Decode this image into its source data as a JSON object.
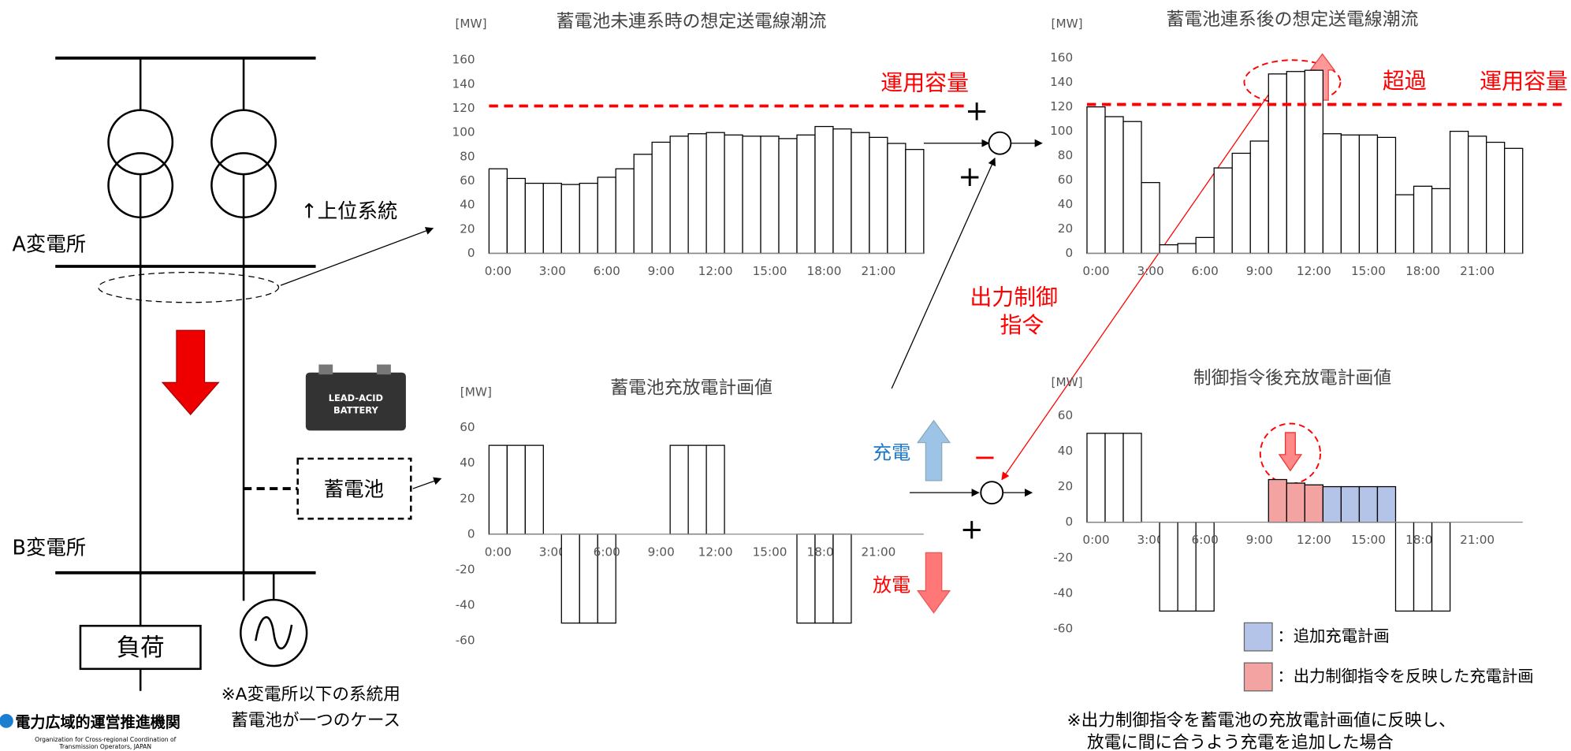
{
  "chart_data": [
    {
      "type": "bar",
      "title": "蓄電池未連系時の想定送電線潮流",
      "ylabel": "[MW]",
      "categories": [
        "0:00",
        null,
        null,
        "3:00",
        null,
        null,
        "6:00",
        null,
        null,
        "9:00",
        null,
        null,
        "12:00",
        null,
        null,
        "15:00",
        null,
        null,
        "18:00",
        null,
        null,
        "21:00",
        null,
        null
      ],
      "values": [
        70,
        62,
        58,
        58,
        57,
        58,
        63,
        70,
        82,
        92,
        97,
        99,
        100,
        98,
        97,
        97,
        95,
        98,
        105,
        103,
        100,
        96,
        91,
        86
      ],
      "color": "#ffffff",
      "ylim": [
        0,
        160
      ],
      "yticks": [
        0,
        20,
        40,
        60,
        80,
        100,
        120,
        140,
        160
      ],
      "ref_line": {
        "value": 122,
        "label": "運用容量",
        "color": "#ff0000"
      }
    },
    {
      "type": "bar",
      "title": "蓄電池連系後の想定送電線潮流",
      "ylabel": "[MW]",
      "categories": [
        "0:00",
        null,
        null,
        "3:00",
        null,
        null,
        "6:00",
        null,
        null,
        "9:00",
        null,
        null,
        "12:00",
        null,
        null,
        "15:00",
        null,
        null,
        "18:00",
        null,
        null,
        "21:00",
        null,
        null
      ],
      "values": [
        120,
        112,
        108,
        58,
        7,
        8,
        13,
        70,
        82,
        92,
        147,
        149,
        150,
        98,
        97,
        97,
        95,
        48,
        55,
        53,
        100,
        96,
        91,
        86
      ],
      "color": "#ffffff",
      "ylim": [
        0,
        160
      ],
      "yticks": [
        0,
        20,
        40,
        60,
        80,
        100,
        120,
        140,
        160
      ],
      "ref_line": {
        "value": 122,
        "label": "運用容量",
        "color": "#ff0000"
      }
    },
    {
      "type": "bar",
      "title": "蓄電池充放電計画値",
      "ylabel": "[MW]",
      "categories": [
        "0:00",
        null,
        null,
        "3:00",
        null,
        null,
        "6:00",
        null,
        null,
        "9:00",
        null,
        null,
        "12:00",
        null,
        null,
        "15:00",
        null,
        null,
        "18:00",
        null,
        null,
        "21:00",
        null,
        null
      ],
      "values": [
        50,
        50,
        50,
        0,
        -50,
        -50,
        -50,
        0,
        0,
        0,
        50,
        50,
        50,
        0,
        0,
        0,
        0,
        -50,
        -50,
        -50,
        0,
        0,
        0,
        0
      ],
      "color": "#ffffff",
      "ylim": [
        -60,
        60
      ],
      "yticks": [
        -60,
        -40,
        -20,
        0,
        20,
        40,
        60
      ]
    },
    {
      "type": "bar",
      "title": "制御指令後充放電計画値",
      "ylabel": "[MW]",
      "categories": [
        "0:00",
        null,
        null,
        "3:00",
        null,
        null,
        "6:00",
        null,
        null,
        "9:00",
        null,
        null,
        "12:00",
        null,
        null,
        "15:00",
        null,
        null,
        "18:00",
        null,
        null,
        "21:00",
        null,
        null
      ],
      "values": [
        50,
        50,
        50,
        0,
        -50,
        -50,
        -50,
        0,
        0,
        0,
        24,
        22,
        21,
        20,
        20,
        20,
        20,
        -50,
        -50,
        -50,
        0,
        0,
        0,
        0
      ],
      "bar_colors": [
        "#ffffff",
        "#ffffff",
        "#ffffff",
        "#ffffff",
        "#ffffff",
        "#ffffff",
        "#ffffff",
        "#ffffff",
        "#ffffff",
        "#ffffff",
        "#f4a3a3",
        "#f4a3a3",
        "#f4a3a3",
        "#b4c3e8",
        "#b4c3e8",
        "#b4c3e8",
        "#b4c3e8",
        "#ffffff",
        "#ffffff",
        "#ffffff",
        "#ffffff",
        "#ffffff",
        "#ffffff",
        "#ffffff"
      ],
      "ylim": [
        -60,
        60
      ],
      "yticks": [
        -60,
        -40,
        -20,
        0,
        20,
        40,
        60
      ],
      "legend": [
        {
          "label": "：追加充電計画",
          "color": "#b4c3e8"
        },
        {
          "label": "：出力制御指令を反映した充電計画",
          "color": "#f4a3a3"
        }
      ]
    }
  ],
  "diagram": {
    "substation_a": "A変電所",
    "substation_b": "B変電所",
    "upper_system": "↑上位系統",
    "battery": "蓄電池",
    "load": "負荷",
    "battery_image": [
      "LEAD-ACID",
      "BATTERY"
    ],
    "note_left": [
      "※A変電所以下の系統用",
      "蓄電池が一つのケース"
    ],
    "plus": "+",
    "minus": "−",
    "charge": "充電",
    "discharge": "放電",
    "exceed": "超過",
    "control_command": [
      "出力制御",
      "指令"
    ],
    "note_right": [
      "※出力制御指令を蓄電池の充放電計画値に反映し、",
      "放電に間に合うよう充電を追加した場合"
    ],
    "logo": {
      "name": "電力広域的運営推進機関",
      "english": [
        "Organization for Cross-regional Coordination of",
        "Transmission Operators, JAPAN"
      ]
    }
  }
}
